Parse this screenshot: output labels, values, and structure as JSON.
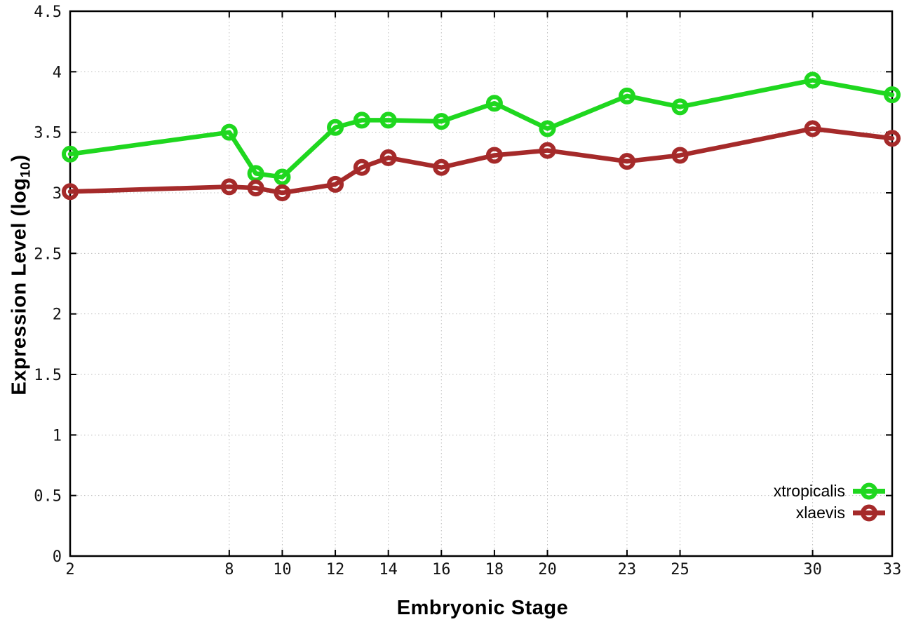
{
  "figure": {
    "background": "#ffffff",
    "xlabel": "Embryonic Stage",
    "ylabel_pre": "Expression Level (log",
    "ylabel_sub": "10",
    "ylabel_post": ")"
  },
  "chart_data": {
    "type": "line",
    "title": "",
    "xlabel": "Embryonic Stage",
    "ylabel": "Expression Level (log10)",
    "x": [
      2,
      8,
      9,
      10,
      12,
      13,
      14,
      16,
      18,
      20,
      23,
      25,
      30,
      33
    ],
    "series": [
      {
        "name": "xtropicalis",
        "color": "#1fd71f",
        "values": [
          3.32,
          3.5,
          3.16,
          3.13,
          3.54,
          3.6,
          3.6,
          3.59,
          3.74,
          3.53,
          3.8,
          3.71,
          3.93,
          3.81
        ]
      },
      {
        "name": "xlaevis",
        "color": "#a52a2a",
        "values": [
          3.01,
          3.05,
          3.04,
          3.0,
          3.07,
          3.21,
          3.29,
          3.21,
          3.31,
          3.35,
          3.26,
          3.31,
          3.53,
          3.45
        ]
      }
    ],
    "xlim": [
      2,
      33
    ],
    "ylim": [
      0,
      4.5
    ],
    "x_ticks": [
      2,
      8,
      10,
      12,
      14,
      16,
      18,
      20,
      23,
      25,
      30,
      33
    ],
    "y_ticks": [
      0,
      0.5,
      1,
      1.5,
      2,
      2.5,
      3,
      3.5,
      4,
      4.5
    ],
    "grid": true,
    "legend_position": "bottom-right",
    "axis_color": "#000000",
    "grid_color": "#bcbcbc",
    "tick_label_color": "#111111"
  }
}
